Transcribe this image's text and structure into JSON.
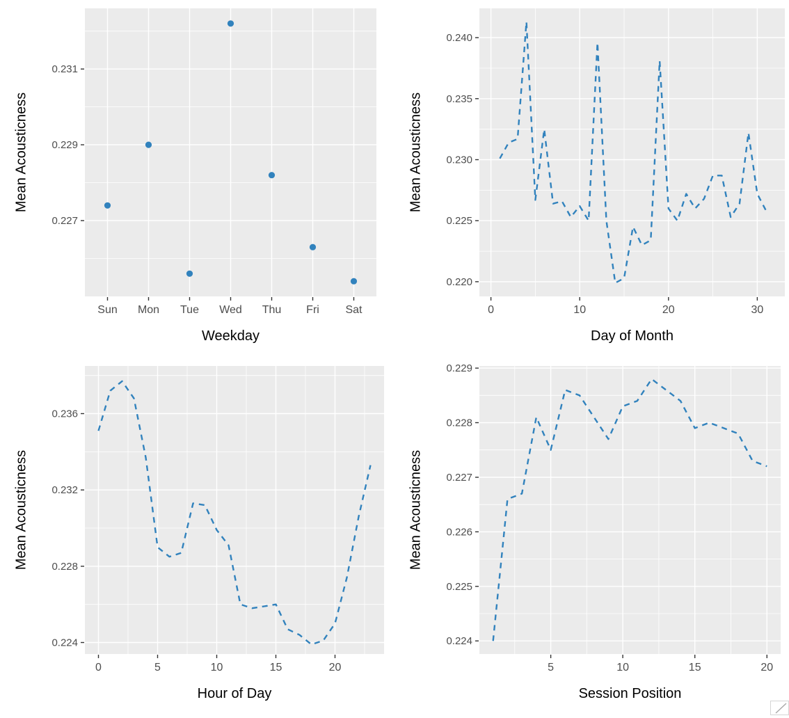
{
  "style": {
    "panel_bg": "#EBEBEB",
    "grid_color": "#FFFFFF",
    "tick_mark_color": "#333333",
    "tick_label_color": "#4D4D4D",
    "axis_title_color": "#000000",
    "series_color": "#3182BD"
  },
  "corner": {
    "resize_grip": "resize-grip"
  },
  "chart_data": [
    {
      "id": "weekday",
      "type": "scatter",
      "x_type": "category",
      "xlabel": "Weekday",
      "ylabel": "Mean Acousticness",
      "categories": [
        "Sun",
        "Mon",
        "Tue",
        "Wed",
        "Thu",
        "Fri",
        "Sat"
      ],
      "values": [
        0.2274,
        0.229,
        0.2256,
        0.2322,
        0.2282,
        0.2263,
        0.2254
      ],
      "ylim": [
        0.225,
        0.2326
      ],
      "y_ticks": [
        0.227,
        0.229,
        0.231
      ],
      "y_tick_labels": [
        "0.227",
        "0.229",
        "0.231"
      ],
      "y_minor": [
        0.226,
        0.228,
        0.23,
        0.232
      ],
      "grid": true,
      "legend": false,
      "margins": {
        "l": 122,
        "r": 26,
        "t": 12,
        "b": 88
      }
    },
    {
      "id": "day-of-month",
      "type": "line",
      "dashed": true,
      "x_type": "continuous",
      "xlabel": "Day of Month",
      "ylabel": "Mean Acousticness",
      "x": [
        1,
        2,
        3,
        4,
        5,
        6,
        7,
        8,
        9,
        10,
        11,
        12,
        13,
        14,
        15,
        16,
        17,
        18,
        19,
        20,
        21,
        22,
        23,
        24,
        25,
        26,
        27,
        28,
        29,
        30,
        31
      ],
      "values": [
        0.2301,
        0.2314,
        0.2317,
        0.2413,
        0.2267,
        0.2325,
        0.2264,
        0.2266,
        0.2253,
        0.2262,
        0.225,
        0.2396,
        0.225,
        0.2199,
        0.2203,
        0.2245,
        0.223,
        0.2234,
        0.2381,
        0.226,
        0.225,
        0.2272,
        0.226,
        0.2268,
        0.2287,
        0.2287,
        0.2253,
        0.2264,
        0.2322,
        0.2272,
        0.2258
      ],
      "xlim": [
        -1.3,
        33.1
      ],
      "x_ticks": [
        0,
        10,
        20,
        30
      ],
      "x_tick_labels": [
        "0",
        "10",
        "20",
        "30"
      ],
      "x_minor": [
        5,
        15,
        25
      ],
      "ylim": [
        0.2188,
        0.2424
      ],
      "y_ticks": [
        0.22,
        0.225,
        0.23,
        0.235,
        0.24
      ],
      "y_tick_labels": [
        "0.220",
        "0.225",
        "0.230",
        "0.235",
        "0.240"
      ],
      "y_minor": [
        0.2225,
        0.2275,
        0.2325,
        0.2375
      ],
      "grid": true,
      "legend": false,
      "margins": {
        "l": 122,
        "r": 6,
        "t": 12,
        "b": 88
      }
    },
    {
      "id": "hour-of-day",
      "type": "line",
      "dashed": true,
      "x_type": "continuous",
      "xlabel": "Hour of Day",
      "ylabel": "Mean Acousticness",
      "x": [
        0,
        1,
        2,
        3,
        4,
        5,
        6,
        7,
        8,
        9,
        10,
        11,
        12,
        13,
        14,
        15,
        16,
        17,
        18,
        19,
        20,
        21,
        22,
        23
      ],
      "values": [
        0.2351,
        0.2372,
        0.2377,
        0.2368,
        0.2337,
        0.229,
        0.2285,
        0.2287,
        0.2313,
        0.2312,
        0.2299,
        0.2291,
        0.226,
        0.2258,
        0.2259,
        0.226,
        0.2247,
        0.2244,
        0.2239,
        0.2241,
        0.225,
        0.2274,
        0.2306,
        0.2333
      ],
      "xlim": [
        -1.15,
        24.15
      ],
      "x_ticks": [
        0,
        5,
        10,
        15,
        20
      ],
      "x_tick_labels": [
        "0",
        "5",
        "10",
        "15",
        "20"
      ],
      "x_minor": [
        2.5,
        7.5,
        12.5,
        17.5,
        22.5
      ],
      "ylim": [
        0.2234,
        0.2385
      ],
      "y_ticks": [
        0.224,
        0.228,
        0.232,
        0.236
      ],
      "y_tick_labels": [
        "0.224",
        "0.228",
        "0.232",
        "0.236"
      ],
      "y_minor": [
        0.226,
        0.23,
        0.234,
        0.238
      ],
      "grid": true,
      "legend": false,
      "margins": {
        "l": 122,
        "r": 15,
        "t": 12,
        "b": 88
      }
    },
    {
      "id": "session-position",
      "type": "line",
      "dashed": true,
      "x_type": "continuous",
      "xlabel": "Session Position",
      "ylabel": "Mean Acousticness",
      "x": [
        1,
        2,
        3,
        4,
        5,
        6,
        7,
        8,
        9,
        10,
        11,
        12,
        13,
        14,
        15,
        16,
        17,
        18,
        19,
        20
      ],
      "values": [
        0.224,
        0.2266,
        0.2267,
        0.2281,
        0.2275,
        0.2286,
        0.2285,
        0.2281,
        0.2277,
        0.2283,
        0.2284,
        0.2288,
        0.2286,
        0.2284,
        0.2279,
        0.228,
        0.2279,
        0.2278,
        0.2273,
        0.2272
      ],
      "xlim": [
        0.05,
        20.95
      ],
      "x_ticks": [
        5,
        10,
        15,
        20
      ],
      "x_tick_labels": [
        "5",
        "10",
        "15",
        "20"
      ],
      "x_minor": [
        2.5,
        7.5,
        12.5,
        17.5
      ],
      "ylim": [
        0.22376,
        0.22904
      ],
      "y_ticks": [
        0.224,
        0.225,
        0.226,
        0.227,
        0.228,
        0.229
      ],
      "y_tick_labels": [
        "0.224",
        "0.225",
        "0.226",
        "0.227",
        "0.228",
        "0.229"
      ],
      "y_minor": [
        0.2245,
        0.2255,
        0.2265,
        0.2275,
        0.2285
      ],
      "grid": true,
      "legend": false,
      "margins": {
        "l": 122,
        "r": 12,
        "t": 12,
        "b": 88
      }
    }
  ]
}
